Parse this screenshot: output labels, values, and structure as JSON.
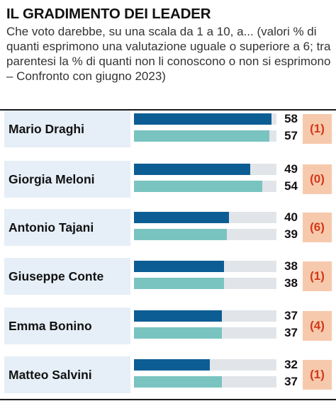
{
  "header": {
    "title": "IL GRADIMENTO DEI LEADER",
    "subtitle": "Che voto darebbe, su una scala da 1 a 10, a... (valori % di quanti esprimono una valutazione uguale o superiore a 6; tra parentesi la % di quanti non li conoscono o non si esprimono – Confronto con giugno 2023)"
  },
  "colors": {
    "current_bar": "#0c5d94",
    "previous_bar": "#79c4c0",
    "track": "#e1e5ea",
    "name_background": "#e6eff7",
    "paren_background": "#f7c9ac",
    "paren_text": "#d2381b"
  },
  "chart_data": {
    "type": "bar",
    "orientation": "horizontal",
    "title": "IL GRADIMENTO DEI LEADER",
    "categories": [
      "Mario Draghi",
      "Giorgia Meloni",
      "Antonio Tajani",
      "Giuseppe Conte",
      "Emma Bonino",
      "Matteo Salvini"
    ],
    "series": [
      {
        "values": [
          58,
          49,
          40,
          38,
          37,
          32
        ]
      },
      {
        "values": [
          57,
          54,
          39,
          38,
          37,
          37
        ]
      }
    ],
    "not_known_pct": [
      "(1)",
      "(0)",
      "(6)",
      "(1)",
      "(4)",
      "(1)"
    ],
    "xlim": [
      0,
      60
    ],
    "grid": false
  }
}
